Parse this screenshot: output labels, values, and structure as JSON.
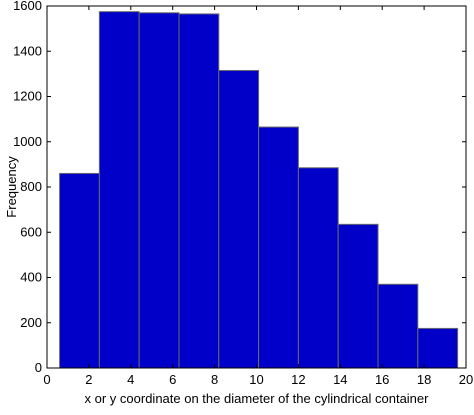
{
  "chart_data": {
    "type": "bar",
    "title": "",
    "xlabel": "x or y coordinate on the diameter of the cylindrical container",
    "ylabel": "Frequency",
    "xlim": [
      0,
      20
    ],
    "ylim": [
      0,
      1600
    ],
    "xticks": [
      0,
      2,
      4,
      6,
      8,
      10,
      12,
      14,
      16,
      18,
      20
    ],
    "yticks": [
      0,
      200,
      400,
      600,
      800,
      1000,
      1200,
      1400,
      1600
    ],
    "bin_edges": [
      0.6,
      2.5,
      4.4,
      6.3,
      8.2,
      10.1,
      12.0,
      13.9,
      15.8,
      17.7,
      19.6
    ],
    "values": [
      860,
      1575,
      1570,
      1565,
      1315,
      1065,
      885,
      635,
      370,
      175
    ],
    "bar_color": "#0000c8",
    "edge_color": "#6a6a6a",
    "grid": false,
    "legend": "none"
  }
}
